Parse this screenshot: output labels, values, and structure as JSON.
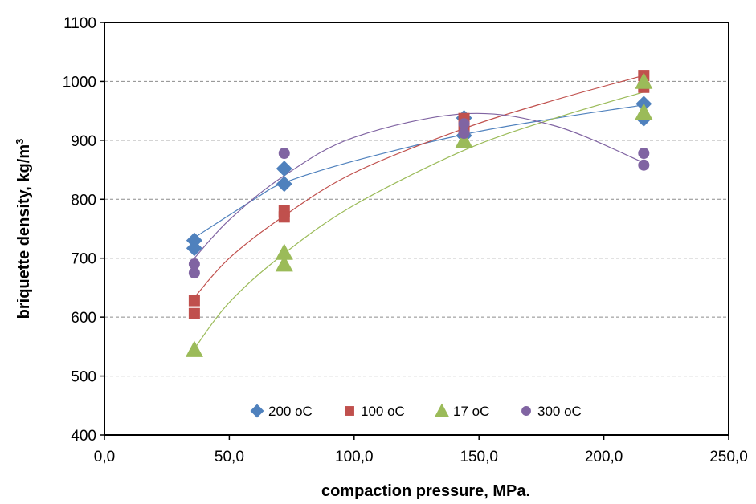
{
  "chart_data": {
    "type": "scatter",
    "xlabel": "compaction pressure, MPa.",
    "ylabel": "briquette density, kg/m",
    "ylabel_sup": "3",
    "xlim": [
      0,
      250
    ],
    "ylim": [
      400,
      1100
    ],
    "x_ticks": [
      "0,0",
      "50,0",
      "100,0",
      "150,0",
      "200,0",
      "250,0"
    ],
    "y_ticks": [
      "400",
      "500",
      "600",
      "700",
      "800",
      "900",
      "1000",
      "1100"
    ],
    "grid": "horizontal dashed",
    "legend_position": "bottom-inside",
    "series": [
      {
        "name": "200 oC",
        "color": "#4f81bd",
        "marker": "diamond",
        "x": [
          36,
          36,
          72,
          72,
          144,
          144,
          216,
          216
        ],
        "y": [
          730,
          717,
          852,
          826,
          938,
          908,
          962,
          937
        ],
        "trend": [
          [
            35,
            732
          ],
          [
            60,
            800
          ],
          [
            72,
            828
          ],
          [
            100,
            865
          ],
          [
            144,
            910
          ],
          [
            180,
            937
          ],
          [
            216,
            960
          ]
        ]
      },
      {
        "name": "100 oC",
        "color": "#c0504d",
        "marker": "square",
        "x": [
          36,
          36,
          72,
          72,
          144,
          144,
          216,
          216
        ],
        "y": [
          628,
          606,
          780,
          770,
          937,
          920,
          1010,
          990
        ],
        "trend": [
          [
            35,
            628
          ],
          [
            50,
            700
          ],
          [
            72,
            772
          ],
          [
            100,
            845
          ],
          [
            144,
            920
          ],
          [
            180,
            968
          ],
          [
            216,
            1010
          ]
        ]
      },
      {
        "name": "17 oC",
        "color": "#9bbb59",
        "marker": "triangle",
        "x": [
          36,
          72,
          72,
          144,
          216,
          216
        ],
        "y": [
          545,
          710,
          690,
          900,
          1000,
          948
        ],
        "trend": [
          [
            35,
            540
          ],
          [
            50,
            625
          ],
          [
            72,
            708
          ],
          [
            100,
            790
          ],
          [
            144,
            883
          ],
          [
            180,
            937
          ],
          [
            216,
            982
          ]
        ]
      },
      {
        "name": "300 oC",
        "color": "#8064a2",
        "marker": "circle",
        "x": [
          36,
          36,
          72,
          144,
          144,
          216,
          216
        ],
        "y": [
          690,
          675,
          878,
          928,
          912,
          878,
          858
        ],
        "trend": [
          [
            35,
            695
          ],
          [
            50,
            765
          ],
          [
            72,
            840
          ],
          [
            100,
            905
          ],
          [
            144,
            945
          ],
          [
            180,
            925
          ],
          [
            216,
            862
          ]
        ]
      }
    ]
  }
}
